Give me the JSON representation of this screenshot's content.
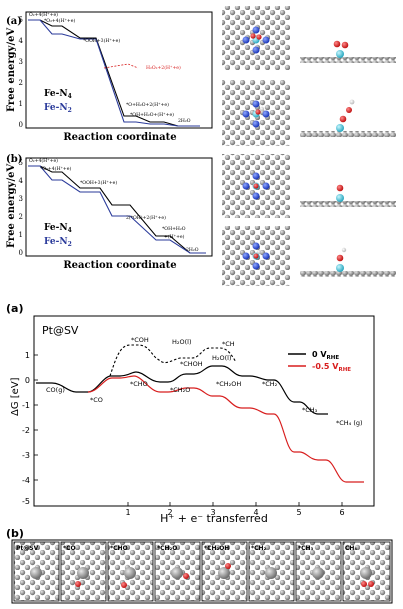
{
  "top_a": {
    "panel": "(a)",
    "ylabel": "Free energy/eV",
    "xlabel": "Reaction coordinate",
    "yticks": [
      "0",
      "1",
      "2",
      "3",
      "4",
      "5"
    ],
    "legend": [
      "Fe-N",
      "Fe-N"
    ],
    "legend_sub": [
      "4",
      "2"
    ],
    "labels": [
      "O₂+4(H⁺+e)",
      "*O₂+4(H⁺+e)",
      "*OOH+3(H⁺+e)",
      "H₂O₂+2(H⁺+e)",
      "*O+H₂O+2(H⁺+e)",
      "*OH+H₂O+(H⁺+e)",
      "2H₂O"
    ]
  },
  "top_b": {
    "panel": "(b)",
    "ylabel": "Free energy/eV",
    "xlabel": "Reaction coordinate",
    "yticks": [
      "0",
      "1",
      "2",
      "3",
      "4",
      "5"
    ],
    "legend": [
      "Fe-N",
      "Fe-N"
    ],
    "legend_sub": [
      "4",
      "2"
    ],
    "labels": [
      "O₂+4(H⁺+e)",
      "*O₂+4(H⁺+e)",
      "*OOH+3(H⁺+e)",
      "2(*OH)+2(H⁺+e)",
      "*OH+H₂O",
      "+(H⁺+e)",
      "2H₂O"
    ]
  },
  "bottom_a": {
    "panel": "(a)",
    "system": "Pt@SV",
    "ylabel": "ΔG [eV]",
    "xlabel": "H⁺ + e⁻  transferred",
    "yticks": [
      "1",
      "0",
      "-1",
      "-2",
      "-3",
      "-4",
      "-5"
    ],
    "xticks": [
      "1",
      "2",
      "3",
      "4",
      "5",
      "6"
    ],
    "legend": [
      "0 V",
      "-0.5 V"
    ],
    "legend_sub": [
      "RHE",
      "RHE"
    ],
    "labels": [
      "CO(g)",
      "*CO",
      "*CHO",
      "*COH",
      "*CHOH",
      "H₂O(l)",
      "*CH",
      "H₂O(l)",
      "*CH₂OH",
      "*CH₂O",
      "*CH₂",
      "*CH₃",
      "*CH₄ (g)"
    ]
  },
  "bottom_b": {
    "panel": "(b)",
    "tiles": [
      "Pt@SV",
      "*CO",
      "*CHO",
      "*CH₂O",
      "*CH₂OH",
      "*CH₂",
      "*CH₃",
      "CH₄"
    ]
  },
  "chart_data": [
    {
      "type": "line",
      "panel": "(a)",
      "xlabel": "Reaction coordinate",
      "ylabel": "Free energy/eV",
      "ylim": [
        0,
        5.5
      ],
      "series": [
        {
          "name": "Fe-N4",
          "color": "#000000",
          "values": [
            4.92,
            4.6,
            3.6,
            0.9,
            0.65,
            0.0
          ]
        },
        {
          "name": "Fe-N2",
          "color": "#2a3a9a",
          "values": [
            4.92,
            4.1,
            3.55,
            0.6,
            0.5,
            0.0
          ]
        }
      ]
    },
    {
      "type": "line",
      "panel": "(b)",
      "xlabel": "Reaction coordinate",
      "ylabel": "Free energy/eV",
      "ylim": [
        0,
        5.5
      ],
      "series": [
        {
          "name": "Fe-N4",
          "color": "#000000",
          "values": [
            4.92,
            4.45,
            3.55,
            2.6,
            1.05,
            0.0
          ]
        },
        {
          "name": "Fe-N2",
          "color": "#2a3a9a",
          "values": [
            4.92,
            4.0,
            3.35,
            1.95,
            0.75,
            0.0
          ]
        }
      ]
    },
    {
      "type": "line",
      "panel": "(a)",
      "title": "Pt@SV",
      "xlabel": "H⁺ + e⁻ transferred",
      "ylabel": "ΔG [eV]",
      "ylim": [
        -5,
        1
      ],
      "xlim": [
        -0.5,
        6.8
      ],
      "series": [
        {
          "name": "0 V_RHE",
          "color": "#000000",
          "points": [
            [
              0,
              -0.05
            ],
            [
              0.9,
              -0.35
            ],
            [
              1.2,
              0.3
            ],
            [
              1.7,
              0.35
            ],
            [
              2.2,
              -0.15
            ],
            [
              2.6,
              0.05
            ],
            [
              3.1,
              0.8
            ],
            [
              3.6,
              0.35
            ],
            [
              4.4,
              0.3
            ],
            [
              5.0,
              -0.85
            ],
            [
              5.5,
              -0.85
            ],
            [
              6.1,
              -1.35
            ],
            [
              6.5,
              -1.35
            ]
          ]
        },
        {
          "name": "-0.5 V_RHE",
          "color": "#d81e1e",
          "points": [
            [
              0,
              -0.05
            ],
            [
              0.9,
              -0.35
            ],
            [
              1.2,
              0.3
            ],
            [
              1.7,
              0.3
            ],
            [
              2.2,
              -0.65
            ],
            [
              2.6,
              -0.45
            ],
            [
              3.1,
              -0.95
            ],
            [
              3.6,
              -1.45
            ],
            [
              4.4,
              -1.7
            ],
            [
              5.0,
              -3.35
            ],
            [
              5.5,
              -3.35
            ],
            [
              6.1,
              -4.3
            ],
            [
              6.5,
              -4.3
            ]
          ]
        }
      ]
    }
  ]
}
